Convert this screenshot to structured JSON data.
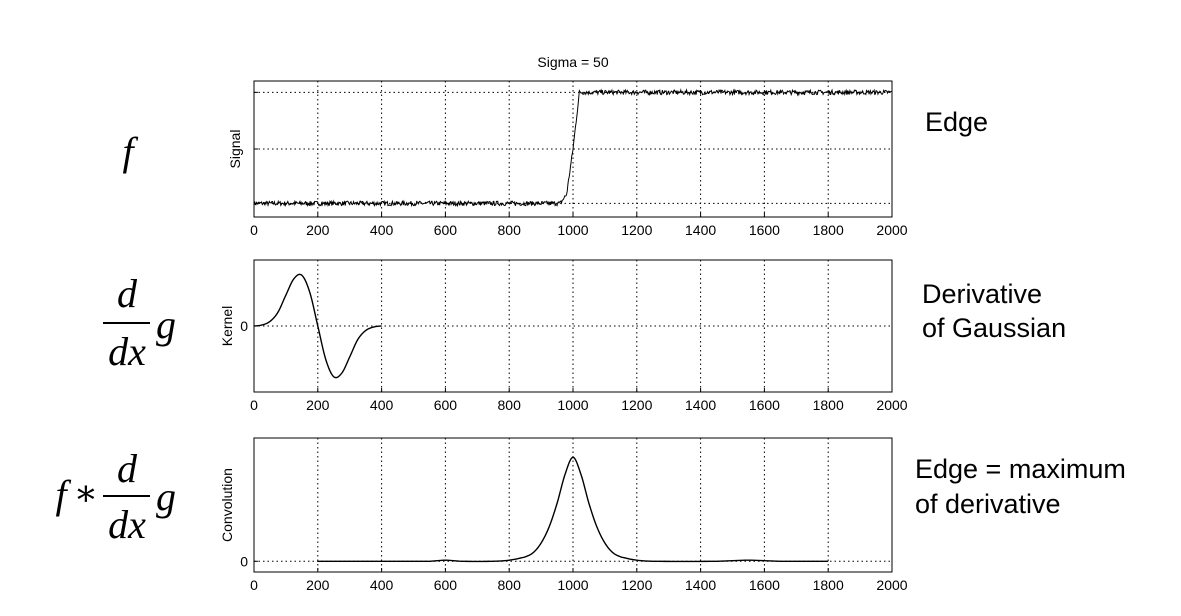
{
  "title": "Sigma = 50",
  "chart_data": [
    {
      "type": "line",
      "title": "Sigma = 50",
      "ylabel": "Signal",
      "xlabel": "",
      "xlim": [
        0,
        2000
      ],
      "ylim": [
        -0.1,
        1.1
      ],
      "xticks": [
        0,
        200,
        400,
        600,
        800,
        1000,
        1200,
        1400,
        1600,
        1800,
        2000
      ],
      "grid": true,
      "description_math": "f",
      "annotation": "Edge",
      "noise_amplitude": 0.02,
      "series": [
        {
          "x": [
            0,
            960,
            980,
            1000,
            1020,
            2000
          ],
          "y": [
            0.02,
            0.02,
            0.1,
            0.5,
            1.0,
            1.0
          ]
        }
      ]
    },
    {
      "type": "line",
      "ylabel": "Kernel",
      "xlabel": "",
      "xlim": [
        0,
        2000
      ],
      "ylim": [
        -1.3,
        1.3
      ],
      "yticks": [
        0
      ],
      "xticks": [
        0,
        200,
        400,
        600,
        800,
        1000,
        1200,
        1400,
        1600,
        1800,
        2000
      ],
      "grid": true,
      "description_math": "d/dx g",
      "annotation_lines": [
        "Derivative",
        "of Gaussian"
      ],
      "series": [
        {
          "x": [
            0,
            25,
            50,
            75,
            100,
            125,
            150,
            175,
            200,
            225,
            250,
            275,
            300,
            325,
            350,
            375,
            400
          ],
          "y": [
            0.0,
            0.02,
            0.09,
            0.27,
            0.61,
            0.93,
            1.0,
            0.66,
            0.0,
            -0.66,
            -1.0,
            -0.93,
            -0.61,
            -0.27,
            -0.09,
            -0.02,
            0.0
          ]
        }
      ]
    },
    {
      "type": "line",
      "ylabel": "Convolution",
      "xlabel": "",
      "xlim": [
        0,
        2000
      ],
      "ylim": [
        -0.1,
        1.15
      ],
      "yticks": [
        0
      ],
      "xticks": [
        0,
        200,
        400,
        600,
        800,
        1000,
        1200,
        1400,
        1600,
        1800,
        2000
      ],
      "grid": true,
      "description_math": "f * d/dx g",
      "annotation_lines": [
        "Edge = maximum",
        "of derivative"
      ],
      "series": [
        {
          "x": [
            200,
            550,
            600,
            650,
            750,
            800,
            850,
            875,
            900,
            925,
            950,
            975,
            1000,
            1025,
            1050,
            1075,
            1100,
            1125,
            1150,
            1200,
            1250,
            1450,
            1550,
            1650,
            1800
          ],
          "y": [
            0.0,
            0.0,
            0.01,
            0.0,
            0.0,
            0.01,
            0.04,
            0.08,
            0.17,
            0.32,
            0.54,
            0.81,
            0.97,
            0.81,
            0.54,
            0.32,
            0.17,
            0.08,
            0.04,
            0.01,
            0.0,
            0.0,
            0.01,
            0.0,
            0.0
          ]
        }
      ]
    }
  ]
}
